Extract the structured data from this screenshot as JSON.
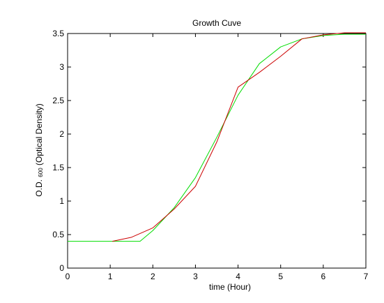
{
  "chart_data": {
    "type": "line",
    "title": "Growth Cuve",
    "xlabel": "time (Hour)",
    "ylabel_parts": {
      "prefix": "O.D. ",
      "subscript": "600",
      "suffix": " (Optical Density)"
    },
    "xlim": [
      0,
      7
    ],
    "ylim": [
      0,
      3.5
    ],
    "x_ticks": [
      0,
      1,
      2,
      3,
      4,
      5,
      6,
      7
    ],
    "x_tick_labels": [
      "0",
      "1",
      "2",
      "3",
      "4",
      "5",
      "6",
      "7"
    ],
    "y_ticks": [
      0,
      0.5,
      1,
      1.5,
      2,
      2.5,
      3,
      3.5
    ],
    "y_tick_labels": [
      "0",
      "0.5",
      "1",
      "1.5",
      "2",
      "2.5",
      "3",
      "3.5"
    ],
    "grid": false,
    "legend": "none",
    "series": [
      {
        "color": "#00dd00",
        "x": [
          0,
          0.5,
          1,
          1.5,
          1.7,
          2.0,
          2.5,
          3.0,
          3.5,
          4.0,
          4.5,
          5.0,
          5.5,
          6.0,
          6.5,
          7.0
        ],
        "y": [
          0.4,
          0.4,
          0.4,
          0.4,
          0.4,
          0.56,
          0.9,
          1.35,
          1.95,
          2.58,
          3.05,
          3.3,
          3.42,
          3.47,
          3.49,
          3.49
        ]
      },
      {
        "color": "#cc0000",
        "x": [
          1.05,
          1.5,
          2.0,
          2.5,
          3.0,
          3.5,
          4.0,
          4.5,
          5.0,
          5.5,
          6.0,
          6.5,
          7.0
        ],
        "y": [
          0.4,
          0.46,
          0.6,
          0.88,
          1.22,
          1.88,
          2.7,
          2.92,
          3.16,
          3.42,
          3.48,
          3.51,
          3.51
        ]
      }
    ]
  }
}
